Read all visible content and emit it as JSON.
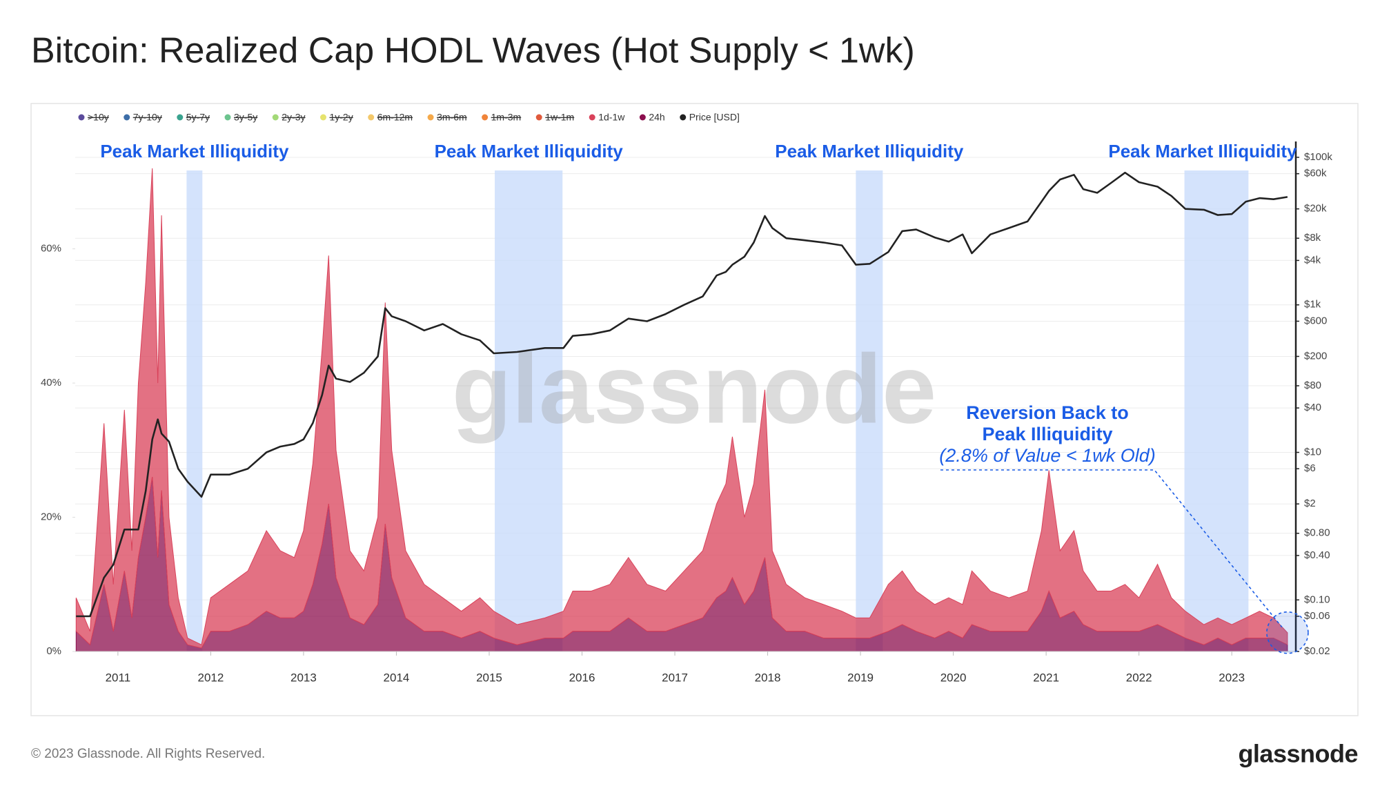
{
  "chart_data": {
    "type": "area",
    "title": "Bitcoin: Realized Cap HODL Waves (Hot Supply < 1wk)",
    "x": [
      2010.55,
      2010.7,
      2010.85,
      2010.95,
      2011.07,
      2011.15,
      2011.22,
      2011.3,
      2011.37,
      2011.43,
      2011.47,
      2011.55,
      2011.65,
      2011.75,
      2011.9,
      2012.0,
      2012.2,
      2012.4,
      2012.6,
      2012.75,
      2012.9,
      2013.0,
      2013.1,
      2013.2,
      2013.27,
      2013.35,
      2013.5,
      2013.65,
      2013.8,
      2013.88,
      2013.95,
      2014.1,
      2014.3,
      2014.5,
      2014.7,
      2014.9,
      2015.05,
      2015.3,
      2015.6,
      2015.8,
      2015.9,
      2016.1,
      2016.3,
      2016.5,
      2016.7,
      2016.9,
      2017.1,
      2017.3,
      2017.45,
      2017.55,
      2017.62,
      2017.75,
      2017.85,
      2017.97,
      2018.05,
      2018.2,
      2018.4,
      2018.6,
      2018.8,
      2018.95,
      2019.1,
      2019.3,
      2019.45,
      2019.6,
      2019.8,
      2019.95,
      2020.1,
      2020.2,
      2020.4,
      2020.6,
      2020.8,
      2020.95,
      2021.03,
      2021.15,
      2021.3,
      2021.4,
      2021.55,
      2021.7,
      2021.85,
      2022.0,
      2022.2,
      2022.35,
      2022.5,
      2022.7,
      2022.85,
      2023.0,
      2023.15,
      2023.3,
      2023.45,
      2023.6
    ],
    "xlim": [
      2010.54,
      2023.69
    ],
    "xticks": [
      2011,
      2012,
      2013,
      2014,
      2015,
      2016,
      2017,
      2018,
      2019,
      2020,
      2021,
      2022,
      2023
    ],
    "ylim": [
      0,
      76
    ],
    "yticks": [
      {
        "value": 0,
        "label": "0%"
      },
      {
        "value": 20,
        "label": "20%"
      },
      {
        "value": 40,
        "label": "40%"
      },
      {
        "value": 60,
        "label": "60%"
      }
    ],
    "y2lim": [
      0.02,
      164000
    ],
    "y2_log": true,
    "y2ticks": [
      {
        "value": 0.02,
        "label": "$0.02"
      },
      {
        "value": 0.06,
        "label": "$0.06"
      },
      {
        "value": 0.1,
        "label": "$0.10"
      },
      {
        "value": 0.4,
        "label": "$0.40"
      },
      {
        "value": 0.8,
        "label": "$0.80"
      },
      {
        "value": 2,
        "label": "$2"
      },
      {
        "value": 6,
        "label": "$6"
      },
      {
        "value": 10,
        "label": "$10"
      },
      {
        "value": 40,
        "label": "$40"
      },
      {
        "value": 80,
        "label": "$80"
      },
      {
        "value": 200,
        "label": "$200"
      },
      {
        "value": 600,
        "label": "$600"
      },
      {
        "value": 1000,
        "label": "$1k"
      },
      {
        "value": 4000,
        "label": "$4k"
      },
      {
        "value": 8000,
        "label": "$8k"
      },
      {
        "value": 20000,
        "label": "$20k"
      },
      {
        "value": 60000,
        "label": "$60k"
      },
      {
        "value": 100000,
        "label": "$100k"
      }
    ],
    "grid": true,
    "series": [
      {
        "name": ">10y",
        "color": "#5b4b9c",
        "visible": false
      },
      {
        "name": "7y-10y",
        "color": "#3d6ea8",
        "visible": false
      },
      {
        "name": "5y-7y",
        "color": "#3aa38f",
        "visible": false
      },
      {
        "name": "3y-5y",
        "color": "#6cc48e",
        "visible": false
      },
      {
        "name": "2y-3y",
        "color": "#a3d977",
        "visible": false
      },
      {
        "name": "1y-2y",
        "color": "#e6e36e",
        "visible": false
      },
      {
        "name": "6m-12m",
        "color": "#f3c86a",
        "visible": false
      },
      {
        "name": "3m-6m",
        "color": "#f5a94a",
        "visible": false
      },
      {
        "name": "1m-3m",
        "color": "#f0843a",
        "visible": false
      },
      {
        "name": "1w-1m",
        "color": "#e05a3c",
        "visible": false
      },
      {
        "name": "1d-1w",
        "color": "#d9425a",
        "visible": true,
        "values": [
          5,
          2,
          24,
          7,
          24,
          10,
          26,
          35,
          46,
          26,
          41,
          13,
          5,
          1,
          0.5,
          5,
          7,
          8,
          12,
          10,
          9,
          12,
          18,
          29,
          37,
          19,
          10,
          8,
          13,
          33,
          19,
          10,
          7,
          5,
          4,
          5,
          4,
          3,
          3,
          4,
          6,
          6,
          7,
          9,
          7,
          6,
          8,
          10,
          14,
          16,
          21,
          13,
          16,
          25,
          10,
          7,
          5,
          5,
          4,
          3,
          3,
          7,
          8,
          6,
          5,
          5,
          5,
          8,
          6,
          5,
          6,
          12,
          18,
          10,
          12,
          8,
          6,
          6,
          7,
          5,
          9,
          5,
          4,
          3,
          3,
          3,
          3,
          4,
          3,
          1.8
        ]
      },
      {
        "name": "24h",
        "color": "#8c0f4e",
        "visible": true,
        "values": [
          3,
          1,
          10,
          3,
          12,
          5,
          14,
          20,
          26,
          14,
          24,
          7,
          3,
          1,
          0.5,
          3,
          3,
          4,
          6,
          5,
          5,
          6,
          10,
          16,
          22,
          11,
          5,
          4,
          7,
          19,
          11,
          5,
          3,
          3,
          2,
          3,
          2,
          1,
          2,
          2,
          3,
          3,
          3,
          5,
          3,
          3,
          4,
          5,
          8,
          9,
          11,
          7,
          9,
          14,
          5,
          3,
          3,
          2,
          2,
          2,
          2,
          3,
          4,
          3,
          2,
          3,
          2,
          4,
          3,
          3,
          3,
          6,
          9,
          5,
          6,
          4,
          3,
          3,
          3,
          3,
          4,
          3,
          2,
          1,
          2,
          1,
          2,
          2,
          2,
          1
        ]
      },
      {
        "name": "Price [USD]",
        "color": "#222222",
        "visible": true,
        "type": "line",
        "axis": "y2",
        "values": [
          0.06,
          0.06,
          0.2,
          0.3,
          0.9,
          0.9,
          0.9,
          3,
          15,
          28,
          18,
          14,
          6,
          4,
          2.5,
          5,
          5,
          6,
          10,
          12,
          13,
          15,
          25,
          60,
          150,
          100,
          90,
          120,
          200,
          900,
          700,
          600,
          450,
          550,
          400,
          330,
          220,
          230,
          260,
          260,
          380,
          400,
          450,
          650,
          600,
          750,
          1000,
          1300,
          2500,
          2800,
          3500,
          4500,
          7000,
          16000,
          11000,
          8000,
          7500,
          7000,
          6400,
          3500,
          3600,
          5200,
          10000,
          10500,
          8200,
          7200,
          9000,
          5000,
          9000,
          11000,
          13500,
          25000,
          35000,
          50000,
          58000,
          37000,
          33000,
          45000,
          62000,
          46000,
          40000,
          30000,
          20000,
          19500,
          16500,
          17000,
          25000,
          28000,
          27000,
          29000
        ]
      }
    ],
    "highlights": [
      {
        "x0": 2011.74,
        "x1": 2011.91,
        "label": "Peak Market Illiquidity"
      },
      {
        "x0": 2015.06,
        "x1": 2015.79,
        "label": "Peak Market Illiquidity"
      },
      {
        "x0": 2018.95,
        "x1": 2019.24,
        "label": "Peak Market Illiquidity"
      },
      {
        "x0": 2022.49,
        "x1": 2023.18,
        "label": "Peak Market Illiquidity"
      }
    ],
    "annotation": {
      "lines": [
        "Reversion Back to",
        "Peak Illiquidity",
        "(2.8% of Value < 1wk Old)"
      ]
    },
    "watermark": "glassnode"
  },
  "footer": {
    "copyright": "© 2023 Glassnode. All Rights Reserved.",
    "logo": "glassnode"
  }
}
